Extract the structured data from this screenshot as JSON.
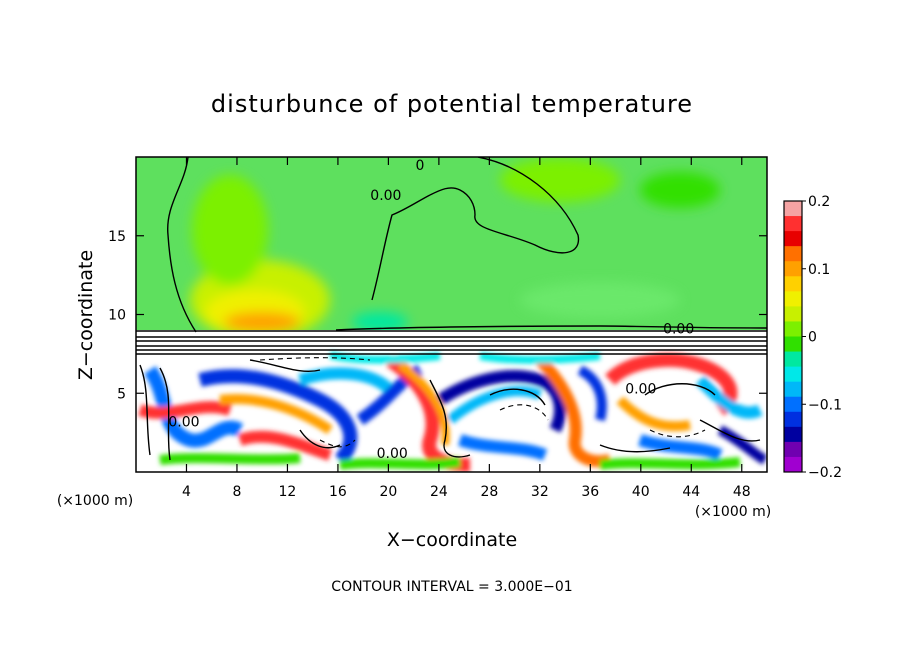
{
  "chart_data": {
    "type": "heatmap",
    "title": "disturbunce of potential temperature",
    "xlabel": "X−coordinate",
    "ylabel": "Z−coordinate",
    "x_unit_label_left": "(×1000 m)",
    "x_unit_label_right": "(×1000 m)",
    "xlim": [
      0,
      50
    ],
    "ylim": [
      0,
      20
    ],
    "x_ticks": [
      4,
      8,
      12,
      16,
      20,
      24,
      28,
      32,
      36,
      40,
      44,
      48
    ],
    "x_tick_labels": [
      "4",
      "8",
      "12",
      "16",
      "20",
      "24",
      "28",
      "32",
      "36",
      "40",
      "44",
      "48"
    ],
    "y_ticks": [
      5,
      10,
      15
    ],
    "y_tick_labels": [
      "5",
      "10",
      "15"
    ],
    "colorbar": {
      "min": -0.2,
      "max": 0.2,
      "ticks": [
        0.2,
        0.1,
        0,
        -0.1,
        -0.2
      ],
      "tick_labels": [
        "0.2",
        "0.1",
        "0",
        "−0.1",
        "−0.2"
      ],
      "colors": [
        "#f5a3a3",
        "#ff3030",
        "#e80000",
        "#ff7000",
        "#ffa000",
        "#ffd000",
        "#f0f000",
        "#c8f000",
        "#7cf000",
        "#30e000",
        "#00e8a0",
        "#00e8e8",
        "#00b8f8",
        "#0070ff",
        "#0030e0",
        "#0000a0",
        "#7000b0",
        "#a000d0"
      ]
    },
    "contour_interval_text": "CONTOUR INTERVAL = 3.000E−01",
    "contour_labels": [
      {
        "text": "0.00",
        "x": 19.8,
        "y": 17.6
      },
      {
        "text": "0",
        "x": 22.5,
        "y": 19.5
      },
      {
        "text": "0.00",
        "x": 43.0,
        "y": 9.1
      },
      {
        "text": "0.00",
        "x": 3.8,
        "y": 3.2
      },
      {
        "text": "0.00",
        "x": 20.3,
        "y": 1.2
      },
      {
        "text": "0.00",
        "x": 40.0,
        "y": 5.3
      }
    ]
  }
}
